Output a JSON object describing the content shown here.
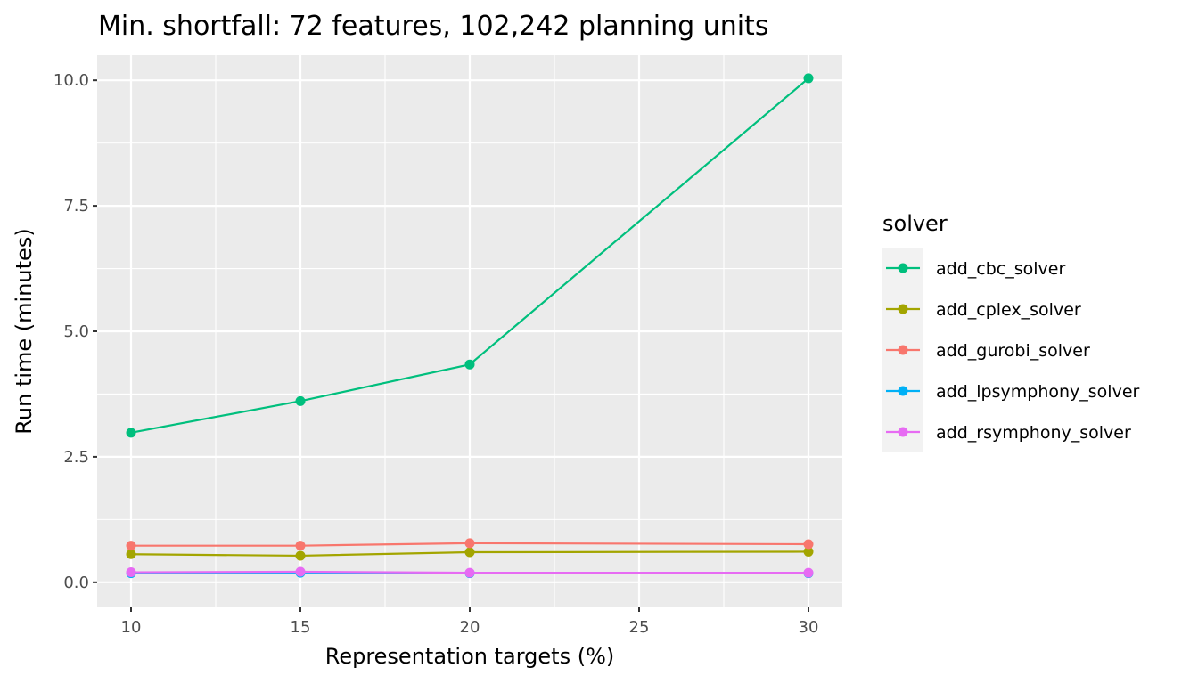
{
  "chart_data": {
    "type": "line",
    "title": "Min. shortfall: 72 features, 102,242 planning units",
    "xlabel": "Representation targets (%)",
    "ylabel": "Run time (minutes)",
    "x": [
      10,
      15,
      20,
      30
    ],
    "xlim": [
      9,
      31
    ],
    "ylim": [
      -0.5,
      10.5
    ],
    "x_ticks": [
      10,
      15,
      20,
      25,
      30
    ],
    "x_tick_labels": [
      "10",
      "15",
      "20",
      "25",
      "30"
    ],
    "y_ticks": [
      0,
      2.5,
      5,
      7.5,
      10
    ],
    "y_tick_labels": [
      "0.0",
      "2.5",
      "5.0",
      "7.5",
      "10.0"
    ],
    "grid": true,
    "legend_title": "solver",
    "legend_position": "right",
    "series": [
      {
        "name": "add_cbc_solver",
        "color": "#00BF7D",
        "values": [
          2.98,
          3.61,
          4.34,
          10.04
        ]
      },
      {
        "name": "add_cplex_solver",
        "color": "#A3A500",
        "values": [
          0.56,
          0.53,
          0.6,
          0.61
        ]
      },
      {
        "name": "add_gurobi_solver",
        "color": "#F8766D",
        "values": [
          0.73,
          0.73,
          0.78,
          0.76
        ]
      },
      {
        "name": "add_lpsymphony_solver",
        "color": "#00B0F6",
        "values": [
          0.18,
          0.19,
          0.18,
          0.18
        ]
      },
      {
        "name": "add_rsymphony_solver",
        "color": "#E76BF3",
        "values": [
          0.2,
          0.21,
          0.19,
          0.19
        ]
      }
    ]
  }
}
